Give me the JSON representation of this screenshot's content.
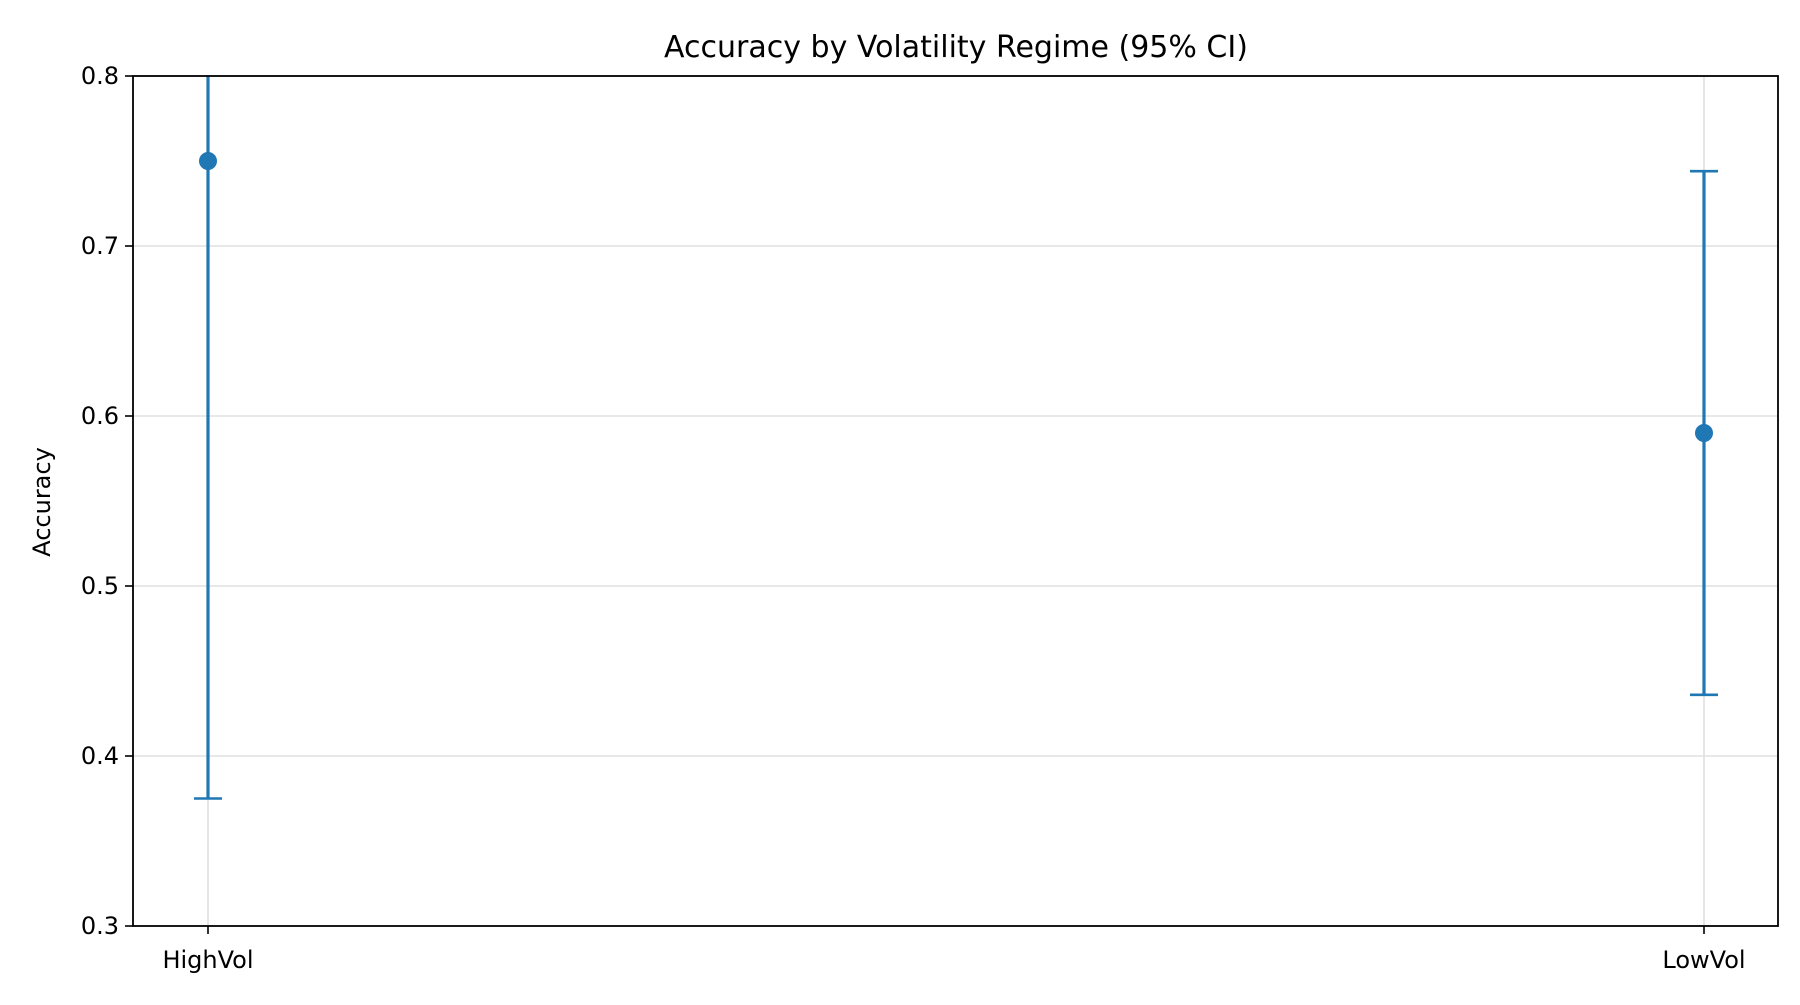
{
  "chart_data": {
    "type": "scatter",
    "title": "Accuracy by Volatility Regime (95% CI)",
    "xlabel": "",
    "ylabel": "Accuracy",
    "categories": [
      "HighVol",
      "LowVol"
    ],
    "series": [
      {
        "values": [
          0.75,
          0.59
        ],
        "ci_lower": [
          0.375,
          0.436
        ],
        "ci_upper": [
          0.8,
          0.744
        ]
      }
    ],
    "ylim": [
      0.3,
      0.8
    ],
    "yticks": [
      "0.3",
      "0.4",
      "0.5",
      "0.6",
      "0.7",
      "0.8"
    ],
    "grid": true,
    "color": "#1f77b4"
  }
}
